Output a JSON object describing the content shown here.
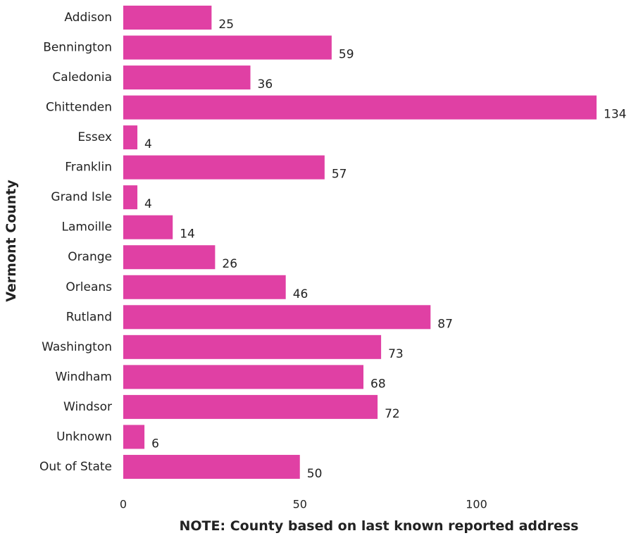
{
  "chart_data": {
    "type": "bar",
    "orientation": "horizontal",
    "categories": [
      "Addison",
      "Bennington",
      "Caledonia",
      "Chittenden",
      "Essex",
      "Franklin",
      "Grand Isle",
      "Lamoille",
      "Orange",
      "Orleans",
      "Rutland",
      "Washington",
      "Windham",
      "Windsor",
      "Unknown",
      "Out of State"
    ],
    "values": [
      25,
      59,
      36,
      134,
      4,
      57,
      4,
      14,
      26,
      46,
      87,
      73,
      68,
      72,
      6,
      50
    ],
    "data_labels": [
      "25",
      "59",
      "36",
      "134",
      "4",
      "57",
      "4",
      "14",
      "26",
      "46",
      "87",
      "73",
      "68",
      "72",
      "6",
      "50"
    ],
    "xlabel": "NOTE: County based on last known reported address",
    "ylabel": "Vermont County",
    "x_ticks": [
      "0",
      "50",
      "100"
    ],
    "x_tick_values": [
      0,
      50,
      100
    ],
    "xlim": [
      0,
      134
    ],
    "grid": false,
    "legend": "none",
    "bar_color": "#e040a4"
  }
}
